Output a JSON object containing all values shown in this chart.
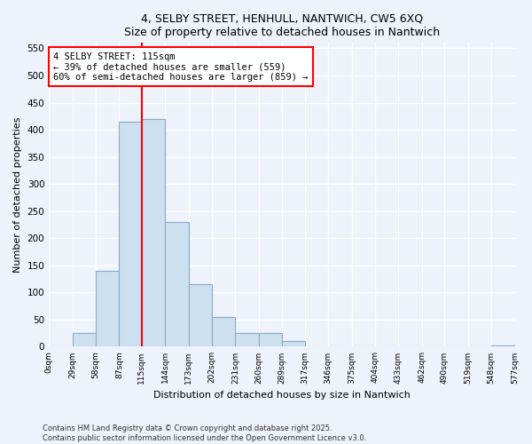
{
  "title1": "4, SELBY STREET, HENHULL, NANTWICH, CW5 6XQ",
  "title2": "Size of property relative to detached houses in Nantwich",
  "xlabel": "Distribution of detached houses by size in Nantwich",
  "ylabel": "Number of detached properties",
  "bin_edges": [
    0,
    29,
    58,
    87,
    115,
    144,
    173,
    202,
    231,
    260,
    289,
    317,
    346,
    375,
    404,
    433,
    462,
    490,
    519,
    548,
    577
  ],
  "bin_counts": [
    0,
    25,
    140,
    415,
    420,
    230,
    115,
    55,
    25,
    25,
    10,
    0,
    0,
    0,
    0,
    0,
    0,
    0,
    0,
    2
  ],
  "bar_color": "#cce0f0",
  "bar_edgecolor": "#88aacc",
  "property_line_x": 115,
  "property_line_color": "red",
  "annotation_text": "4 SELBY STREET: 115sqm\n← 39% of detached houses are smaller (559)\n60% of semi-detached houses are larger (859) →",
  "annotation_box_color": "#ffffff",
  "annotation_box_edgecolor": "red",
  "ylim": [
    0,
    560
  ],
  "yticks": [
    0,
    50,
    100,
    150,
    200,
    250,
    300,
    350,
    400,
    450,
    500,
    550
  ],
  "tick_labels": [
    "0sqm",
    "29sqm",
    "58sqm",
    "87sqm",
    "115sqm",
    "144sqm",
    "173sqm",
    "202sqm",
    "231sqm",
    "260sqm",
    "289sqm",
    "317sqm",
    "346sqm",
    "375sqm",
    "404sqm",
    "433sqm",
    "462sqm",
    "490sqm",
    "519sqm",
    "548sqm",
    "577sqm"
  ],
  "footer": "Contains HM Land Registry data © Crown copyright and database right 2025.\nContains public sector information licensed under the Open Government Licence v3.0.",
  "bg_color": "#eef2fb",
  "grid_color": "#ffffff"
}
